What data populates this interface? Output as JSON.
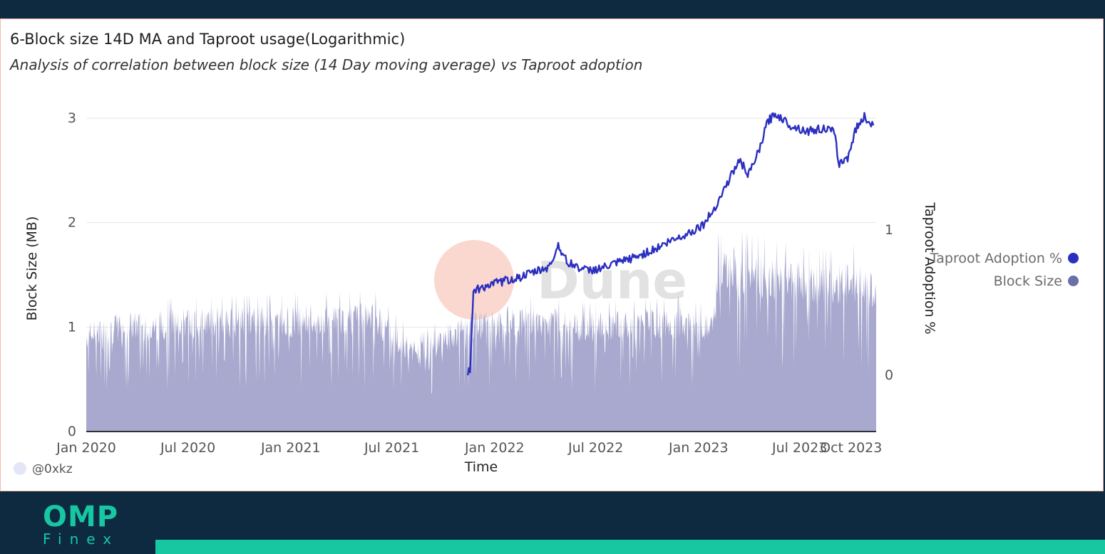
{
  "header": {
    "title": "6-Block size 14D MA and Taproot usage(Logarithmic)",
    "subtitle": "Analysis of correlation between block size (14 Day moving average) vs Taproot adoption"
  },
  "author": "@0xkz",
  "watermark": "Dune",
  "brand": {
    "name": "OMP",
    "sub": "Finex"
  },
  "colors": {
    "background": "#0e2a40",
    "accent": "#17c7a2",
    "block_size": "#a9a9cf",
    "block_size_legend": "#6b6fa8",
    "taproot": "#2b2fc0"
  },
  "chart_data": {
    "type": "area+line",
    "xlabel": "Time",
    "ylabel": "Block Size (MB)",
    "y2label": "Taproot Adoption %",
    "xticks": [
      "Jan 2020",
      "Jul 2020",
      "Jan 2021",
      "Jul 2021",
      "Jan 2022",
      "Jul 2022",
      "Jan 2023",
      "Jul 2023",
      "Oct 2023"
    ],
    "xtick_dates": [
      "2020-01-01",
      "2020-07-01",
      "2021-01-01",
      "2021-07-01",
      "2022-01-01",
      "2022-07-01",
      "2023-01-01",
      "2023-07-01",
      "2023-10-01"
    ],
    "x_range": [
      "2020-01-01",
      "2023-11-15"
    ],
    "ylim": [
      0,
      3
    ],
    "yticks": [
      0,
      1,
      2,
      3
    ],
    "y2ticks": [
      0,
      1
    ],
    "grid": true,
    "legend_position": "right",
    "series": [
      {
        "name": "Taproot Adoption %",
        "axis": "right",
        "points": [
          [
            "2021-11-14",
            0.0
          ],
          [
            "2021-11-16",
            0.05
          ],
          [
            "2021-11-18",
            0.02
          ],
          [
            "2021-11-24",
            0.58
          ],
          [
            "2021-12-20",
            0.62
          ],
          [
            "2022-01-20",
            0.65
          ],
          [
            "2022-02-20",
            0.68
          ],
          [
            "2022-03-20",
            0.72
          ],
          [
            "2022-04-10",
            0.75
          ],
          [
            "2022-04-25",
            0.9
          ],
          [
            "2022-05-10",
            0.78
          ],
          [
            "2022-06-15",
            0.72
          ],
          [
            "2022-07-15",
            0.74
          ],
          [
            "2022-08-15",
            0.78
          ],
          [
            "2022-09-15",
            0.82
          ],
          [
            "2022-10-15",
            0.87
          ],
          [
            "2022-11-15",
            0.93
          ],
          [
            "2022-12-15",
            0.98
          ],
          [
            "2023-01-10",
            1.04
          ],
          [
            "2023-01-25",
            1.12
          ],
          [
            "2023-02-08",
            1.22
          ],
          [
            "2023-02-25",
            1.35
          ],
          [
            "2023-03-15",
            1.48
          ],
          [
            "2023-04-01",
            1.38
          ],
          [
            "2023-04-20",
            1.55
          ],
          [
            "2023-05-05",
            1.75
          ],
          [
            "2023-05-20",
            1.8
          ],
          [
            "2023-06-15",
            1.72
          ],
          [
            "2023-07-15",
            1.68
          ],
          [
            "2023-08-15",
            1.7
          ],
          [
            "2023-09-01",
            1.67
          ],
          [
            "2023-09-10",
            1.45
          ],
          [
            "2023-09-25",
            1.5
          ],
          [
            "2023-10-10",
            1.7
          ],
          [
            "2023-10-25",
            1.78
          ],
          [
            "2023-11-10",
            1.72
          ]
        ]
      },
      {
        "name": "Block Size",
        "axis": "left",
        "points": [
          [
            "2020-01-01",
            1.0
          ],
          [
            "2020-03-01",
            1.08
          ],
          [
            "2020-06-01",
            1.12
          ],
          [
            "2020-09-01",
            1.14
          ],
          [
            "2020-12-01",
            1.15
          ],
          [
            "2021-03-01",
            1.16
          ],
          [
            "2021-06-01",
            1.17
          ],
          [
            "2021-08-15",
            0.8
          ],
          [
            "2021-10-01",
            0.95
          ],
          [
            "2021-12-01",
            1.12
          ],
          [
            "2022-03-01",
            1.15
          ],
          [
            "2022-06-01",
            1.08
          ],
          [
            "2022-09-01",
            1.1
          ],
          [
            "2022-12-01",
            1.12
          ],
          [
            "2023-01-25",
            1.05
          ],
          [
            "2023-02-05",
            1.65
          ],
          [
            "2023-03-01",
            1.7
          ],
          [
            "2023-05-01",
            1.62
          ],
          [
            "2023-07-01",
            1.55
          ],
          [
            "2023-09-01",
            1.52
          ],
          [
            "2023-10-15",
            1.58
          ],
          [
            "2023-11-15",
            1.4
          ]
        ]
      }
    ]
  }
}
